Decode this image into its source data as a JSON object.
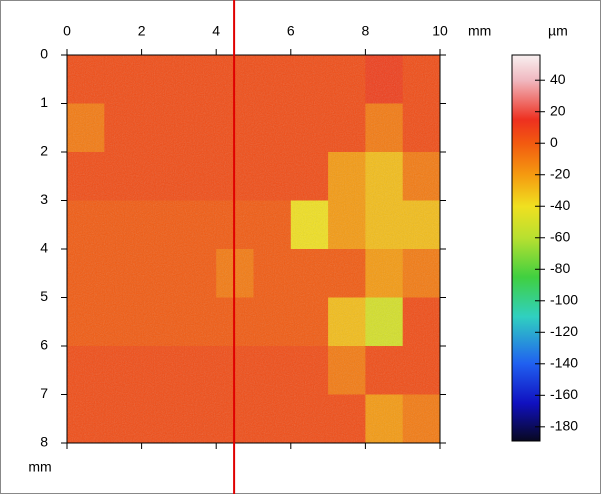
{
  "chart_data": {
    "type": "heatmap",
    "x_label": "mm",
    "y_label": "mm",
    "xlim": [
      0,
      10
    ],
    "xticks": [
      0,
      2,
      4,
      6,
      8,
      10
    ],
    "ylim": [
      0,
      8
    ],
    "yticks": [
      0,
      1,
      2,
      3,
      4,
      5,
      6,
      7,
      8
    ],
    "y_reversed": true,
    "z": [
      [
        5,
        5,
        5,
        5,
        5,
        5,
        5,
        5,
        10,
        5
      ],
      [
        -10,
        5,
        5,
        5,
        5,
        5,
        5,
        5,
        -10,
        5
      ],
      [
        5,
        5,
        5,
        5,
        5,
        5,
        5,
        -20,
        -30,
        -10
      ],
      [
        0,
        0,
        0,
        0,
        0,
        0,
        -40,
        -20,
        -30,
        -30
      ],
      [
        0,
        0,
        0,
        0,
        -10,
        0,
        0,
        0,
        -20,
        -10
      ],
      [
        0,
        0,
        0,
        0,
        0,
        0,
        0,
        -30,
        -50,
        5
      ],
      [
        5,
        5,
        5,
        5,
        5,
        5,
        5,
        -10,
        5,
        5
      ],
      [
        5,
        5,
        5,
        5,
        5,
        5,
        5,
        5,
        -20,
        -10
      ]
    ],
    "colorbar": {
      "title": "µm",
      "zlim": [
        -189,
        56
      ],
      "ticks": [
        40,
        20,
        0,
        -20,
        -40,
        -60,
        -80,
        -100,
        -120,
        -140,
        -160,
        -180
      ],
      "colorscale": [
        {
          "value": 56,
          "color": "#f8f0f0"
        },
        {
          "value": 40,
          "color": "#f0b8c0"
        },
        {
          "value": 15,
          "color": "#ee3020"
        },
        {
          "value": 0,
          "color": "#f25a10"
        },
        {
          "value": -20,
          "color": "#f59a10"
        },
        {
          "value": -40,
          "color": "#f0e020"
        },
        {
          "value": -60,
          "color": "#b8e030"
        },
        {
          "value": -85,
          "color": "#40d040"
        },
        {
          "value": -110,
          "color": "#30d0c0"
        },
        {
          "value": -140,
          "color": "#2060f0"
        },
        {
          "value": -165,
          "color": "#1010c0"
        },
        {
          "value": -189,
          "color": "#080820"
        }
      ]
    },
    "marker": {
      "x": 4.48,
      "color": "#e00000"
    }
  }
}
